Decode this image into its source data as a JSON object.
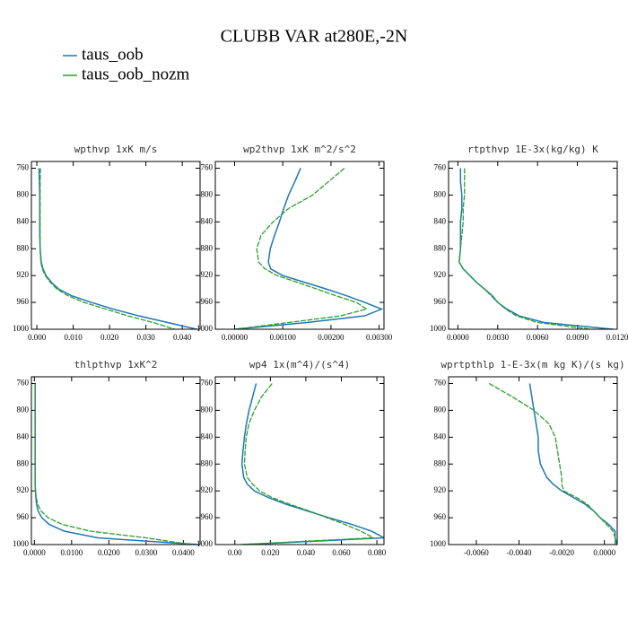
{
  "title": "CLUBB VAR at280E,-2N",
  "chart_data": [
    {
      "type": "line",
      "title": "wpthvp  1xK m/s",
      "y": [
        760,
        780,
        800,
        820,
        840,
        860,
        880,
        900,
        910,
        920,
        930,
        940,
        950,
        960,
        970,
        980,
        990,
        1000
      ],
      "ylim": [
        1000,
        750
      ],
      "yticks": [
        760,
        800,
        840,
        880,
        920,
        960,
        1000
      ],
      "xlim": [
        -0.0015,
        0.0449
      ],
      "xticks": [
        {
          "value": 0,
          "label": "0.000"
        },
        {
          "value": 0.01,
          "label": "0.010"
        },
        {
          "value": 0.02,
          "label": "0.020"
        },
        {
          "value": 0.03,
          "label": "0.030"
        },
        {
          "value": 0.04,
          "label": "0.040"
        }
      ],
      "series": [
        {
          "name": "taus_oob",
          "color": "#1f77b4",
          "values": [
            0.0006,
            0.0007,
            0.0008,
            0.0008,
            0.0008,
            0.0008,
            0.0009,
            0.0012,
            0.0017,
            0.0025,
            0.004,
            0.006,
            0.0095,
            0.015,
            0.021,
            0.028,
            0.036,
            0.044
          ]
        },
        {
          "name": "taus_oob_nozm",
          "color": "#2ca02c",
          "values": [
            0.001,
            0.0009,
            0.0009,
            0.0009,
            0.0009,
            0.0009,
            0.0009,
            0.0011,
            0.0015,
            0.0023,
            0.0037,
            0.0055,
            0.0085,
            0.013,
            0.019,
            0.025,
            0.032,
            0.038
          ]
        }
      ]
    },
    {
      "type": "line",
      "title": "wp2thvp  1xK m^2/s^2",
      "y": [
        760,
        780,
        800,
        820,
        840,
        860,
        880,
        900,
        910,
        920,
        930,
        940,
        950,
        960,
        970,
        980,
        990,
        1000
      ],
      "ylim": [
        1000,
        750
      ],
      "yticks": [
        760,
        800,
        840,
        880,
        920,
        960,
        1000
      ],
      "xlim": [
        -0.0004,
        0.0031
      ],
      "xticks": [
        {
          "value": 0,
          "label": "0.00000"
        },
        {
          "value": 0.001,
          "label": "0.00100"
        },
        {
          "value": 0.002,
          "label": "0.00200"
        },
        {
          "value": 0.003,
          "label": "0.00300"
        }
      ],
      "series": [
        {
          "name": "taus_oob",
          "color": "#1f77b4",
          "values": [
            0.00137,
            0.00125,
            0.00112,
            0.00102,
            0.00093,
            0.00083,
            0.00074,
            0.0007,
            0.00075,
            0.001,
            0.00145,
            0.0019,
            0.00232,
            0.0027,
            0.00305,
            0.0027,
            0.0015,
            0
          ]
        },
        {
          "name": "taus_oob_nozm",
          "color": "#2ca02c",
          "values": [
            0.00228,
            0.00195,
            0.00162,
            0.00112,
            0.0008,
            0.00055,
            0.00046,
            0.0005,
            0.00063,
            0.00088,
            0.0013,
            0.0017,
            0.0021,
            0.00253,
            0.00274,
            0.0022,
            0.00112,
            0
          ]
        }
      ]
    },
    {
      "type": "line",
      "title": "rtpthvp  1E-3x(kg/kg) K",
      "y": [
        760,
        780,
        800,
        820,
        840,
        860,
        880,
        900,
        910,
        920,
        930,
        940,
        950,
        960,
        970,
        980,
        990,
        1000
      ],
      "ylim": [
        1000,
        750
      ],
      "yticks": [
        760,
        800,
        840,
        880,
        920,
        960,
        1000
      ],
      "xlim": [
        -0.0007,
        0.012
      ],
      "xticks": [
        {
          "value": 0,
          "label": "0.0000"
        },
        {
          "value": 0.003,
          "label": "0.0030"
        },
        {
          "value": 0.006,
          "label": "0.0060"
        },
        {
          "value": 0.009,
          "label": "0.0090"
        },
        {
          "value": 0.012,
          "label": "0.0120"
        }
      ],
      "series": [
        {
          "name": "taus_oob",
          "color": "#1f77b4",
          "values": [
            0.0002,
            0.0002,
            0.0003,
            0.0003,
            0.0002,
            0.0002,
            0.0002,
            0.0001,
            0.0004,
            0.0009,
            0.0014,
            0.002,
            0.0026,
            0.003,
            0.0037,
            0.0046,
            0.0065,
            0.0117
          ]
        },
        {
          "name": "taus_oob_nozm",
          "color": "#2ca02c",
          "values": [
            0.0005,
            0.0005,
            0.0005,
            0.0004,
            0.0004,
            0.0003,
            0.0002,
            0.0001,
            0.0004,
            0.0009,
            0.0014,
            0.002,
            0.0025,
            0.003,
            0.0036,
            0.0044,
            0.006,
            0.01
          ]
        }
      ]
    },
    {
      "type": "line",
      "title": "thlpthvp  1xK^2",
      "y": [
        760,
        780,
        800,
        820,
        840,
        860,
        880,
        900,
        910,
        920,
        930,
        940,
        950,
        960,
        970,
        980,
        990,
        1000
      ],
      "ylim": [
        1000,
        750
      ],
      "yticks": [
        760,
        800,
        840,
        880,
        920,
        960,
        1000
      ],
      "xlim": [
        -0.0008,
        0.0445
      ],
      "xticks": [
        {
          "value": 0,
          "label": "0.0000"
        },
        {
          "value": 0.01,
          "label": "0.0100"
        },
        {
          "value": 0.02,
          "label": "0.0200"
        },
        {
          "value": 0.03,
          "label": "0.0300"
        },
        {
          "value": 0.04,
          "label": "0.0400"
        }
      ],
      "series": [
        {
          "name": "taus_oob",
          "color": "#1f77b4",
          "values": [
            0.0002,
            0.0002,
            0.0002,
            0.0002,
            0.0002,
            0.0002,
            0.0002,
            0.0002,
            0.0002,
            0.0003,
            0.0004,
            0.0006,
            0.001,
            0.002,
            0.004,
            0.008,
            0.017,
            0.044
          ]
        },
        {
          "name": "taus_oob_nozm",
          "color": "#2ca02c",
          "values": [
            0.0002,
            0.0002,
            0.0002,
            0.0002,
            0.0002,
            0.0002,
            0.0002,
            0.0002,
            0.0002,
            0.0003,
            0.0005,
            0.0009,
            0.0018,
            0.0037,
            0.0075,
            0.015,
            0.03,
            0.042
          ]
        }
      ]
    },
    {
      "type": "line",
      "title": "wp4  1x(m^4)/(s^4)",
      "y": [
        760,
        780,
        800,
        820,
        840,
        860,
        880,
        900,
        910,
        920,
        930,
        940,
        950,
        960,
        970,
        980,
        990,
        1000
      ],
      "ylim": [
        1000,
        750
      ],
      "yticks": [
        760,
        800,
        840,
        880,
        920,
        960,
        1000
      ],
      "xlim": [
        -0.011,
        0.084
      ],
      "xticks": [
        {
          "value": 0,
          "label": "0.00"
        },
        {
          "value": 0.02,
          "label": "0.020"
        },
        {
          "value": 0.04,
          "label": "0.040"
        },
        {
          "value": 0.06,
          "label": "0.060"
        },
        {
          "value": 0.08,
          "label": "0.080"
        }
      ],
      "series": [
        {
          "name": "taus_oob",
          "color": "#1f77b4",
          "values": [
            0.012,
            0.01,
            0.008,
            0.0065,
            0.0054,
            0.0046,
            0.004,
            0.005,
            0.007,
            0.011,
            0.019,
            0.029,
            0.041,
            0.053,
            0.066,
            0.077,
            0.084,
            0.005
          ]
        },
        {
          "name": "taus_oob_nozm",
          "color": "#2ca02c",
          "values": [
            0.021,
            0.015,
            0.011,
            0.008,
            0.0064,
            0.0058,
            0.0054,
            0.007,
            0.01,
            0.014,
            0.021,
            0.031,
            0.042,
            0.052,
            0.062,
            0.071,
            0.078,
            0.003
          ]
        }
      ]
    },
    {
      "type": "line",
      "title": "wprtpthlp  1-E-3x(m kg K)/(s kg)",
      "y": [
        760,
        780,
        800,
        820,
        840,
        860,
        880,
        900,
        910,
        920,
        930,
        940,
        950,
        960,
        970,
        980,
        990,
        1000
      ],
      "ylim": [
        1000,
        750
      ],
      "yticks": [
        760,
        800,
        840,
        880,
        920,
        960,
        1000
      ],
      "xlim": [
        -0.0073,
        0.0006
      ],
      "xticks": [
        {
          "value": -0.006,
          "label": "-0.0060"
        },
        {
          "value": -0.004,
          "label": "-0.0040"
        },
        {
          "value": -0.002,
          "label": "-0.0020"
        },
        {
          "value": 0,
          "label": "0.0000"
        }
      ],
      "series": [
        {
          "name": "taus_oob",
          "color": "#1f77b4",
          "values": [
            -0.0035,
            -0.0034,
            -0.0033,
            -0.0032,
            -0.0031,
            -0.0031,
            -0.003,
            -0.0027,
            -0.0024,
            -0.002,
            -0.00145,
            -0.0009,
            -0.0005,
            -0.0002,
            0.0002,
            0.0005,
            0.0005,
            0.0006
          ]
        },
        {
          "name": "taus_oob_nozm",
          "color": "#2ca02c",
          "values": [
            -0.0054,
            -0.0043,
            -0.0033,
            -0.0026,
            -0.0023,
            -0.0022,
            -0.0021,
            -0.002,
            -0.002,
            -0.0019,
            -0.0013,
            -0.0008,
            -0.0005,
            -0.0002,
            0.0001,
            0.0004,
            0.0005,
            0.0005
          ]
        }
      ]
    }
  ]
}
